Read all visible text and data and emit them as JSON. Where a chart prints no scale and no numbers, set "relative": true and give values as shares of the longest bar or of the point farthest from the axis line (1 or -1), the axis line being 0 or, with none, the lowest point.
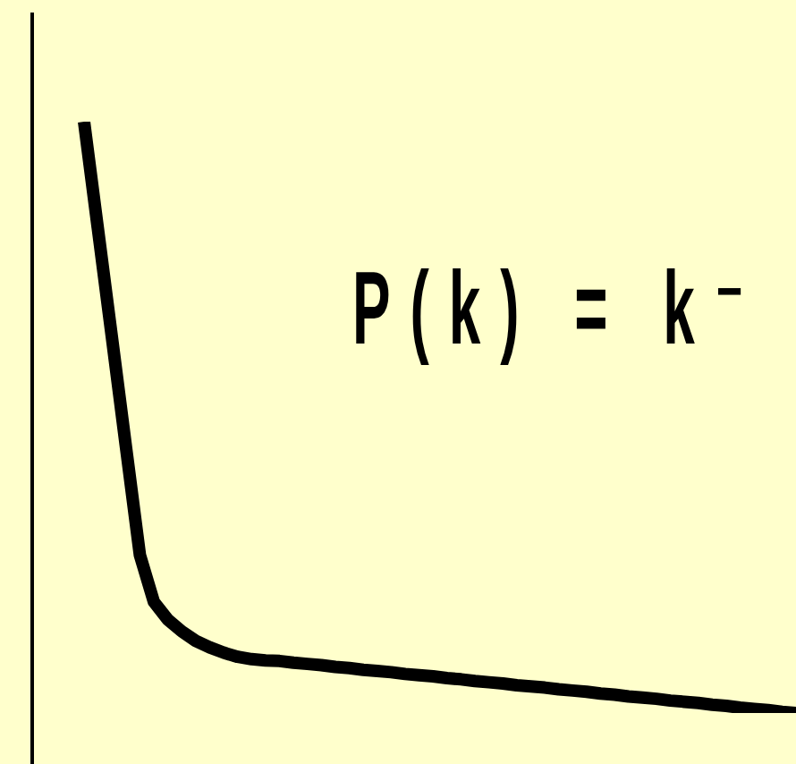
{
  "chart_data": {
    "type": "line",
    "relative": true,
    "annotations": [
      "P(k) = k⁻"
    ],
    "categories": [
      null,
      null,
      null,
      null,
      null,
      null,
      null,
      null,
      null,
      null,
      null,
      null,
      null,
      null,
      null,
      null,
      null,
      null,
      null,
      null,
      null,
      null,
      null,
      null,
      null,
      null,
      null,
      null,
      null,
      null,
      null,
      null,
      null,
      null,
      null,
      null,
      null,
      null,
      null,
      null,
      null,
      null,
      null,
      null,
      null,
      null,
      null,
      null,
      null,
      null,
      null,
      null
    ],
    "series": [
      {
        "color": "#000000",
        "values": [
          1,
          0.817,
          0.634,
          0.45,
          0.267,
          0.188,
          0.158,
          0.138,
          0.122,
          0.111,
          0.102,
          0.095,
          0.091,
          0.089,
          0.088,
          0.085,
          0.083,
          0.081,
          0.078,
          0.076,
          0.073,
          0.071,
          0.069,
          0.066,
          0.064,
          0.062,
          0.059,
          0.057,
          0.054,
          0.052,
          0.05,
          0.047,
          0.045,
          0.043,
          0.04,
          0.038,
          0.036,
          0.033,
          0.031,
          0.028,
          0.026,
          0.024,
          0.021,
          0.019,
          0.017,
          0.014,
          0.012,
          0.009,
          0.007,
          0.005,
          0.002,
          0
        ]
      }
    ]
  }
}
